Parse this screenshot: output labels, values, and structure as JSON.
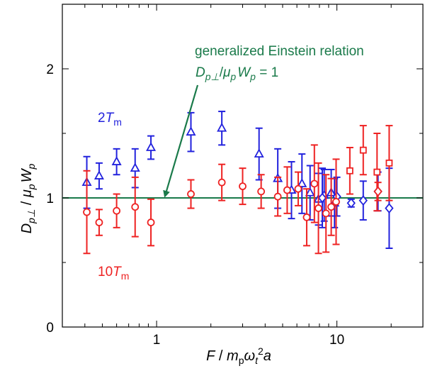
{
  "chart_data": {
    "type": "scatter",
    "title": "",
    "xscale": "log",
    "xlim": [
      0.3,
      30
    ],
    "ylim": [
      0,
      2.5
    ],
    "x_ticks": [
      {
        "value": 1,
        "label": "1"
      },
      {
        "value": 10,
        "label": "10"
      }
    ],
    "y_ticks": [
      {
        "value": 0,
        "label": "0"
      },
      {
        "value": 1,
        "label": "1"
      },
      {
        "value": 2,
        "label": "2"
      }
    ],
    "xlabel": {
      "F": "F",
      "slash": " / ",
      "m": "m",
      "m_sub": "p",
      "omega": "ω",
      "omega_sub": "t",
      "omega_sup": "2",
      "a": "a"
    },
    "ylabel": {
      "D": "D",
      "D_sub": "p⊥",
      "slash": " / ",
      "mu": "μ",
      "mu_sub": "p",
      "W": "W",
      "W_sub": "p"
    },
    "reference_line": {
      "y": 1,
      "color": "#1a7a4a",
      "label_line1": "generalized Einstein relation",
      "label_line2": {
        "D": "D",
        "D_sub": "p⊥",
        "slash": "/",
        "mu": "μ",
        "mu_sub": "p",
        "W": "W",
        "W_sub": "p",
        "equals": " = 1"
      },
      "arrow_tip": {
        "x": 1.12,
        "y": 1.0
      }
    },
    "series": [
      {
        "color": "#2222dd",
        "label_coef": "2",
        "label_T": "T",
        "label_sub": "m",
        "points": [
          {
            "x": 0.41,
            "y": 1.12,
            "err": 0.2,
            "marker": "triangle"
          },
          {
            "x": 0.48,
            "y": 1.17,
            "err": 0.1,
            "marker": "triangle"
          },
          {
            "x": 0.6,
            "y": 1.28,
            "err": 0.1,
            "marker": "triangle"
          },
          {
            "x": 0.76,
            "y": 1.23,
            "err": 0.15,
            "marker": "triangle"
          },
          {
            "x": 0.93,
            "y": 1.39,
            "err": 0.09,
            "marker": "triangle"
          },
          {
            "x": 1.55,
            "y": 1.51,
            "err": 0.15,
            "marker": "triangle"
          },
          {
            "x": 2.3,
            "y": 1.54,
            "err": 0.13,
            "marker": "triangle"
          },
          {
            "x": 3.7,
            "y": 1.34,
            "err": 0.2,
            "marker": "triangle"
          },
          {
            "x": 4.7,
            "y": 1.15,
            "err": 0.23,
            "marker": "triangle"
          },
          {
            "x": 5.6,
            "y": 1.06,
            "err": 0.22,
            "marker": "triangle"
          },
          {
            "x": 6.4,
            "y": 1.11,
            "err": 0.23,
            "marker": "triangle"
          },
          {
            "x": 7.1,
            "y": 1.04,
            "err": 0.21,
            "marker": "triangle"
          },
          {
            "x": 7.9,
            "y": 0.99,
            "err": 0.2,
            "marker": "triangle"
          },
          {
            "x": 8.5,
            "y": 1.02,
            "err": 0.2,
            "marker": "triangle"
          },
          {
            "x": 9.3,
            "y": 1.04,
            "err": 0.18,
            "marker": "triangle"
          },
          {
            "x": 9.7,
            "y": 0.96,
            "err": 0.19,
            "marker": "triangle"
          },
          {
            "x": 8.3,
            "y": 1.0,
            "err": 0.23,
            "marker": "diamond"
          },
          {
            "x": 10.0,
            "y": 1.01,
            "err": 0.15,
            "marker": "diamond"
          },
          {
            "x": 12.0,
            "y": 0.96,
            "err": 0.03,
            "marker": "diamond"
          },
          {
            "x": 14.0,
            "y": 0.98,
            "err": 0.15,
            "marker": "diamond"
          },
          {
            "x": 16.9,
            "y": 1.05,
            "err": 0.15,
            "marker": "diamond"
          },
          {
            "x": 19.5,
            "y": 0.92,
            "err": 0.31,
            "marker": "diamond"
          }
        ]
      },
      {
        "color": "#ee2222",
        "label_coef": "10",
        "label_T": "T",
        "label_sub": "m",
        "points": [
          {
            "x": 0.41,
            "y": 0.89,
            "err": 0.32,
            "marker": "circle"
          },
          {
            "x": 0.48,
            "y": 0.81,
            "err": 0.1,
            "marker": "circle"
          },
          {
            "x": 0.6,
            "y": 0.9,
            "err": 0.13,
            "marker": "circle"
          },
          {
            "x": 0.76,
            "y": 0.93,
            "err": 0.23,
            "marker": "circle"
          },
          {
            "x": 0.93,
            "y": 0.81,
            "err": 0.18,
            "marker": "circle"
          },
          {
            "x": 1.55,
            "y": 1.03,
            "err": 0.11,
            "marker": "circle"
          },
          {
            "x": 2.3,
            "y": 1.12,
            "err": 0.14,
            "marker": "circle"
          },
          {
            "x": 3.0,
            "y": 1.09,
            "err": 0.14,
            "marker": "circle"
          },
          {
            "x": 3.8,
            "y": 1.05,
            "err": 0.13,
            "marker": "circle"
          },
          {
            "x": 4.7,
            "y": 1.01,
            "err": 0.15,
            "marker": "circle"
          },
          {
            "x": 5.3,
            "y": 1.06,
            "err": 0.18,
            "marker": "circle"
          },
          {
            "x": 6.1,
            "y": 1.07,
            "err": 0.13,
            "marker": "circle"
          },
          {
            "x": 6.8,
            "y": 0.85,
            "err": 0.22,
            "marker": "circle"
          },
          {
            "x": 7.5,
            "y": 1.11,
            "err": 0.3,
            "marker": "circle"
          },
          {
            "x": 7.9,
            "y": 0.92,
            "err": 0.35,
            "marker": "circle"
          },
          {
            "x": 8.7,
            "y": 0.88,
            "err": 0.3,
            "marker": "circle"
          },
          {
            "x": 9.3,
            "y": 0.93,
            "err": 0.22,
            "marker": "circle"
          },
          {
            "x": 9.9,
            "y": 0.97,
            "err": 0.33,
            "marker": "circle"
          },
          {
            "x": 11.8,
            "y": 1.21,
            "err": 0.18,
            "marker": "square"
          },
          {
            "x": 14.0,
            "y": 1.37,
            "err": 0.19,
            "marker": "square"
          },
          {
            "x": 16.7,
            "y": 1.2,
            "err": 0.3,
            "marker": "square"
          },
          {
            "x": 19.5,
            "y": 1.27,
            "err": 0.29,
            "marker": "square"
          },
          {
            "x": 16.9,
            "y": 1.05,
            "err": 0.07,
            "marker": "diamond"
          }
        ]
      }
    ]
  }
}
